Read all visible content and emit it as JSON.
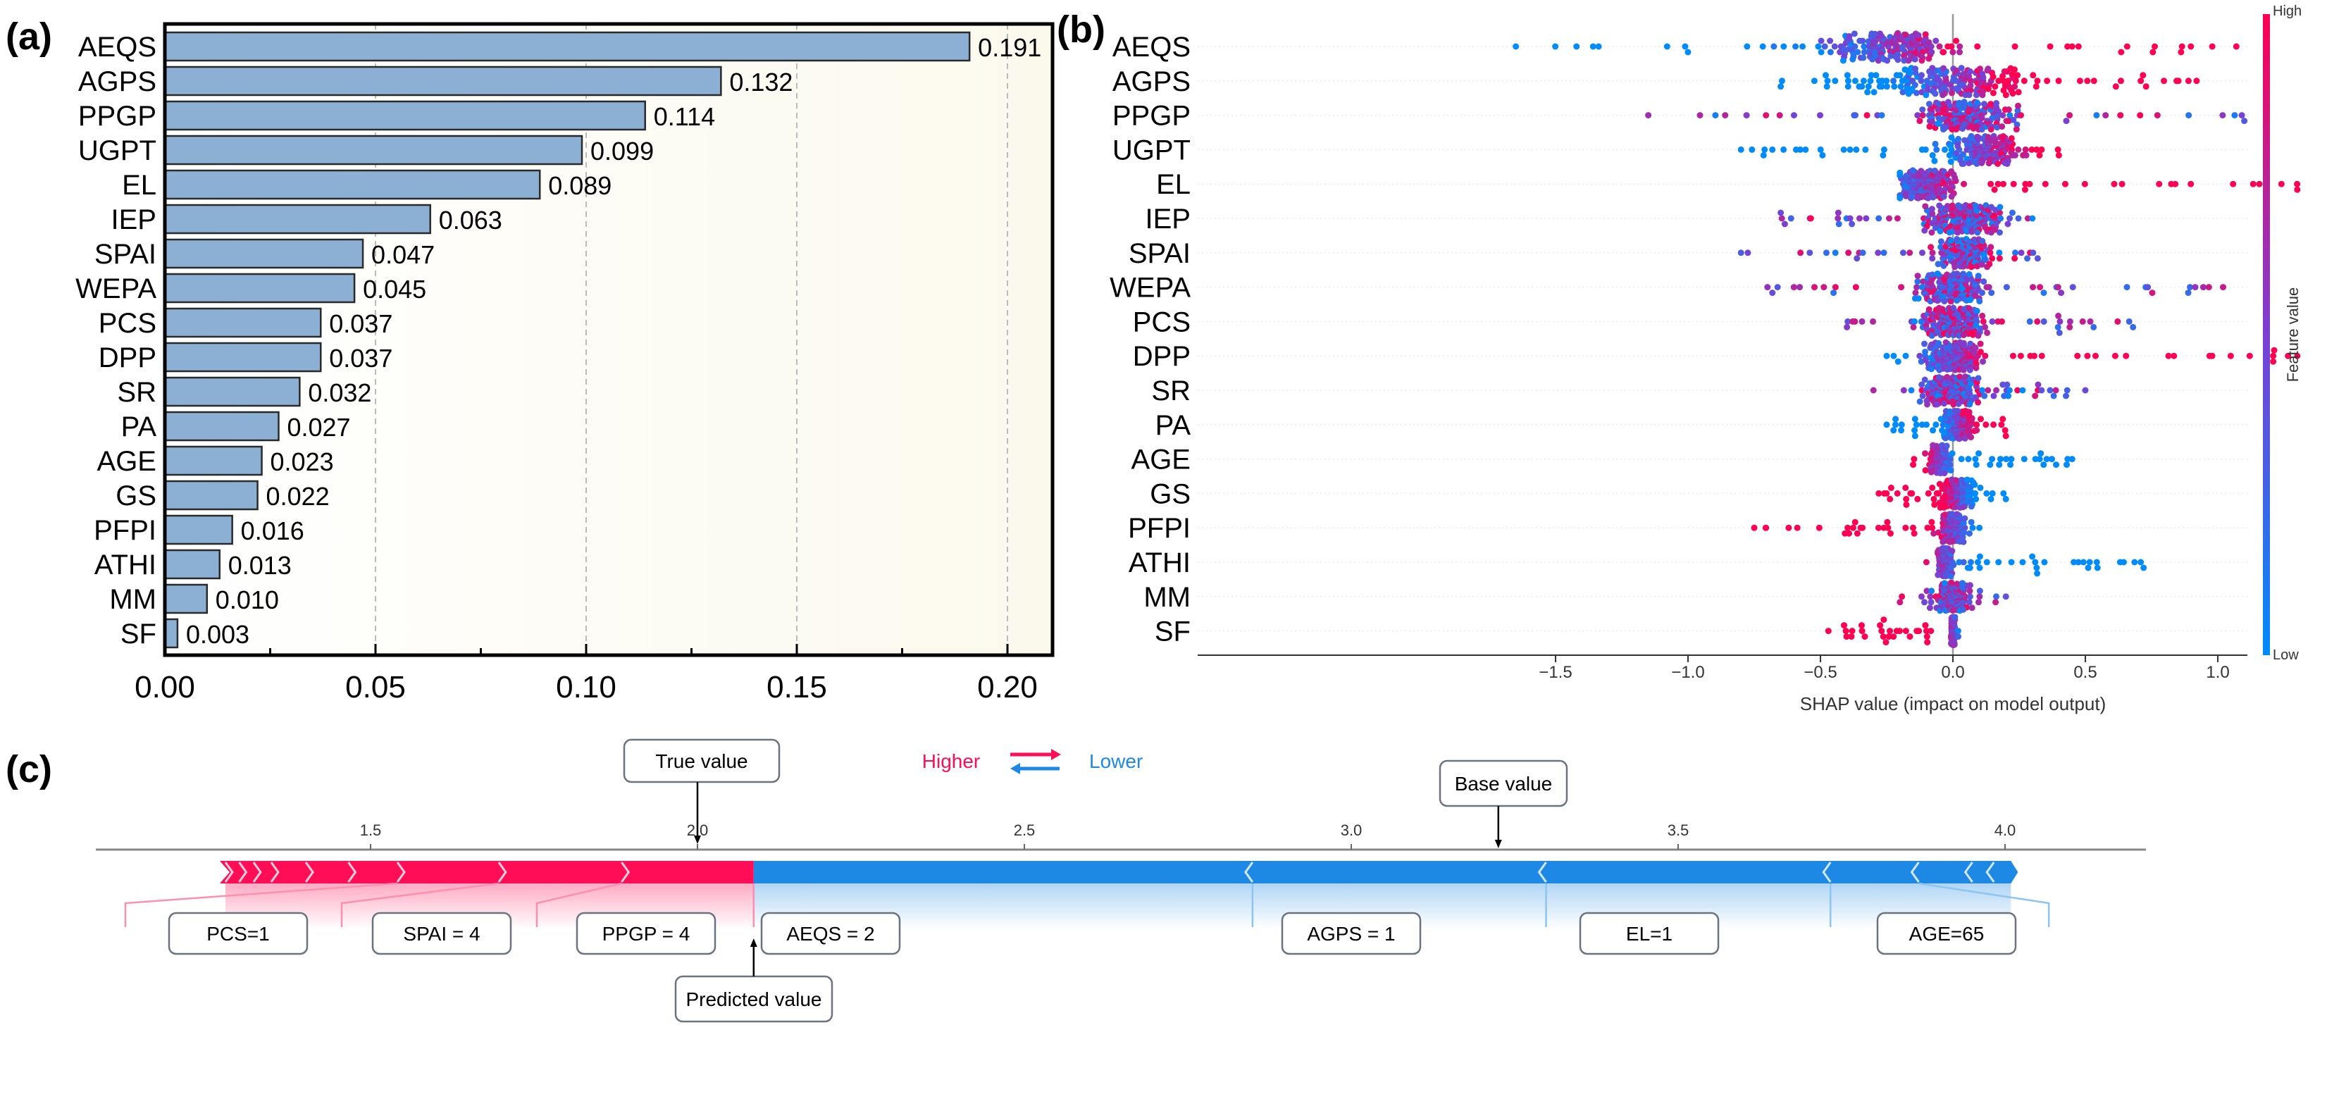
{
  "panels": {
    "a": "(a)",
    "b": "(b)",
    "c": "(c)"
  },
  "chart_data": [
    {
      "type": "bar",
      "orientation": "horizontal",
      "title": "",
      "categories": [
        "AEQS",
        "AGPS",
        "PPGP",
        "UGPT",
        "EL",
        "IEP",
        "SPAI",
        "WEPA",
        "PCS",
        "DPP",
        "SR",
        "PA",
        "AGE",
        "GS",
        "PFPI",
        "ATHI",
        "MM",
        "SF"
      ],
      "values": [
        0.191,
        0.132,
        0.114,
        0.099,
        0.089,
        0.063,
        0.047,
        0.045,
        0.037,
        0.037,
        0.032,
        0.027,
        0.023,
        0.022,
        0.016,
        0.013,
        0.01,
        0.003
      ],
      "value_labels": [
        "0.191",
        "0.132",
        "0.114",
        "0.099",
        "0.089",
        "0.063",
        "0.047",
        "0.045",
        "0.037",
        "0.037",
        "0.032",
        "0.027",
        "0.023",
        "0.022",
        "0.016",
        "0.013",
        "0.010",
        "0.003"
      ],
      "xlim": [
        0,
        0.21
      ],
      "xticks": [
        0,
        0.05,
        0.1,
        0.15,
        0.2
      ],
      "xtick_labels": [
        "0.00",
        "0.05",
        "0.10",
        "0.15",
        "0.20"
      ],
      "grid": "dashed vertical",
      "bar_color": "#8cb0d3",
      "xlabel": "",
      "ylabel": ""
    },
    {
      "type": "scatter",
      "subtype": "shap-beeswarm",
      "categories": [
        "AEQS",
        "AGPS",
        "PPGP",
        "UGPT",
        "EL",
        "IEP",
        "SPAI",
        "WEPA",
        "PCS",
        "DPP",
        "SR",
        "PA",
        "AGE",
        "GS",
        "PFPI",
        "ATHI",
        "MM",
        "SF"
      ],
      "distribution": [
        {
          "min": -1.65,
          "max": 1.07,
          "core": [
            -0.25,
            0.2
          ],
          "high": "positive"
        },
        {
          "min": -0.65,
          "max": 0.92,
          "core": [
            0.0,
            0.3
          ],
          "high": "positive"
        },
        {
          "min": -1.15,
          "max": 1.1,
          "core": [
            0.05,
            0.15
          ],
          "high": "mixed"
        },
        {
          "min": -0.8,
          "max": 0.4,
          "core": [
            0.12,
            0.12
          ],
          "high": "positive"
        },
        {
          "min": -0.2,
          "max": 1.3,
          "core": [
            -0.1,
            0.08
          ],
          "high": "positive"
        },
        {
          "min": -0.65,
          "max": 0.3,
          "core": [
            0.05,
            0.12
          ],
          "high": "mixed"
        },
        {
          "min": -0.8,
          "max": 0.32,
          "core": [
            0.05,
            0.08
          ],
          "high": "mixed"
        },
        {
          "min": -0.7,
          "max": 1.02,
          "core": [
            0.0,
            0.1
          ],
          "high": "mixed"
        },
        {
          "min": -0.4,
          "max": 0.68,
          "core": [
            0.0,
            0.1
          ],
          "high": "mixed"
        },
        {
          "min": -0.25,
          "max": 1.3,
          "core": [
            0.0,
            0.08
          ],
          "high": "positive"
        },
        {
          "min": -0.3,
          "max": 0.5,
          "core": [
            0.0,
            0.1
          ],
          "high": "mixed"
        },
        {
          "min": -0.25,
          "max": 0.2,
          "core": [
            0.02,
            0.05
          ],
          "high": "positive"
        },
        {
          "min": -0.15,
          "max": 0.45,
          "core": [
            -0.05,
            0.03
          ],
          "high": "negative"
        },
        {
          "min": -0.28,
          "max": 0.2,
          "core": [
            0.02,
            0.05
          ],
          "high": "negative"
        },
        {
          "min": -0.75,
          "max": 0.1,
          "core": [
            0.0,
            0.03
          ],
          "high": "negative"
        },
        {
          "min": -0.1,
          "max": 0.72,
          "core": [
            -0.03,
            0.02
          ],
          "high": "negative"
        },
        {
          "min": -0.2,
          "max": 0.2,
          "core": [
            0.0,
            0.04
          ],
          "high": "mixed"
        },
        {
          "min": -0.47,
          "max": 0.02,
          "core": [
            0.0,
            0.005
          ],
          "high": "negative"
        }
      ],
      "xlim": [
        -1.75,
        1.45
      ],
      "xticks": [
        -1.5,
        -1.0,
        -0.5,
        0.0,
        0.5,
        1.0
      ],
      "xtick_labels": [
        "−1.5",
        "−1.0",
        "−0.5",
        "0.0",
        "0.5",
        "1.0"
      ],
      "xlabel": "SHAP value (impact on model output)",
      "colorbar": {
        "label": "Feature value",
        "high": "High",
        "low": "Low",
        "high_color": "#ff0052",
        "mid_color": "#7b3fd4",
        "low_color": "#008bfb"
      }
    },
    {
      "type": "bar",
      "subtype": "shap-force-plot",
      "xlim": [
        1.0,
        4.2
      ],
      "xticks": [
        1.5,
        2.0,
        2.5,
        3.0,
        3.5,
        4.0
      ],
      "xtick_labels": [
        "1.5",
        "2.0",
        "2.5",
        "3.0",
        "3.5",
        "4.0"
      ],
      "true_value": 2.0,
      "predicted_value": 2.086,
      "base_value": 3.225,
      "labels": {
        "true": "True value",
        "predicted": "Predicted value",
        "base": "Base value",
        "higher": "Higher",
        "lower": "Lower"
      },
      "positive_segments": [
        1.278,
        1.299,
        1.321,
        1.348,
        1.401,
        1.466,
        1.541,
        1.696,
        1.884,
        2.086
      ],
      "negative_segments": [
        2.086,
        2.849,
        3.298,
        3.733,
        3.868,
        3.95,
        3.983,
        4.009
      ],
      "features": [
        {
          "label": "PCS=1",
          "effect": "higher"
        },
        {
          "label": "SPAI = 4",
          "effect": "higher"
        },
        {
          "label": "PPGP = 4",
          "effect": "higher"
        },
        {
          "label": "AEQS = 2",
          "effect": "lower"
        },
        {
          "label": "AGPS = 1",
          "effect": "lower"
        },
        {
          "label": "EL=1",
          "effect": "lower"
        },
        {
          "label": "AGE=65",
          "effect": "lower"
        }
      ],
      "colors": {
        "higher": "#ff0d57",
        "lower": "#1e88e5"
      }
    }
  ]
}
